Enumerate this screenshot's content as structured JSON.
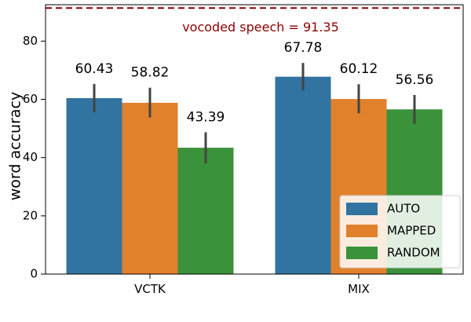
{
  "chart_data": {
    "type": "bar",
    "categories": [
      "VCTK",
      "MIX"
    ],
    "series": [
      {
        "name": "AUTO",
        "color": "#3274a1",
        "values": [
          60.43,
          67.78
        ],
        "errors": [
          [
            55.5,
            65.3
          ],
          [
            63.0,
            72.5
          ]
        ]
      },
      {
        "name": "MAPPED",
        "color": "#e1812c",
        "values": [
          58.82,
          60.12
        ],
        "errors": [
          [
            53.8,
            64.0
          ],
          [
            55.2,
            65.2
          ]
        ]
      },
      {
        "name": "RANDOM",
        "color": "#3a923a",
        "values": [
          43.39,
          56.56
        ],
        "errors": [
          [
            38.0,
            48.7
          ],
          [
            51.6,
            61.5
          ]
        ]
      }
    ],
    "value_labels": [
      [
        "60.43",
        "67.78"
      ],
      [
        "58.82",
        "60.12"
      ],
      [
        "43.39",
        "56.56"
      ]
    ],
    "ylabel": "word accuracy",
    "xlabel": "",
    "ylim": [
      0,
      92.5
    ],
    "yticks": [
      0,
      20,
      40,
      60,
      80
    ],
    "reference_line": {
      "value": 91.35,
      "label": "vocoded speech = 91.35",
      "color": "#8b0000"
    },
    "legend": {
      "placement": "lower-right",
      "entries": [
        "AUTO",
        "MAPPED",
        "RANDOM"
      ]
    },
    "grid": false
  }
}
